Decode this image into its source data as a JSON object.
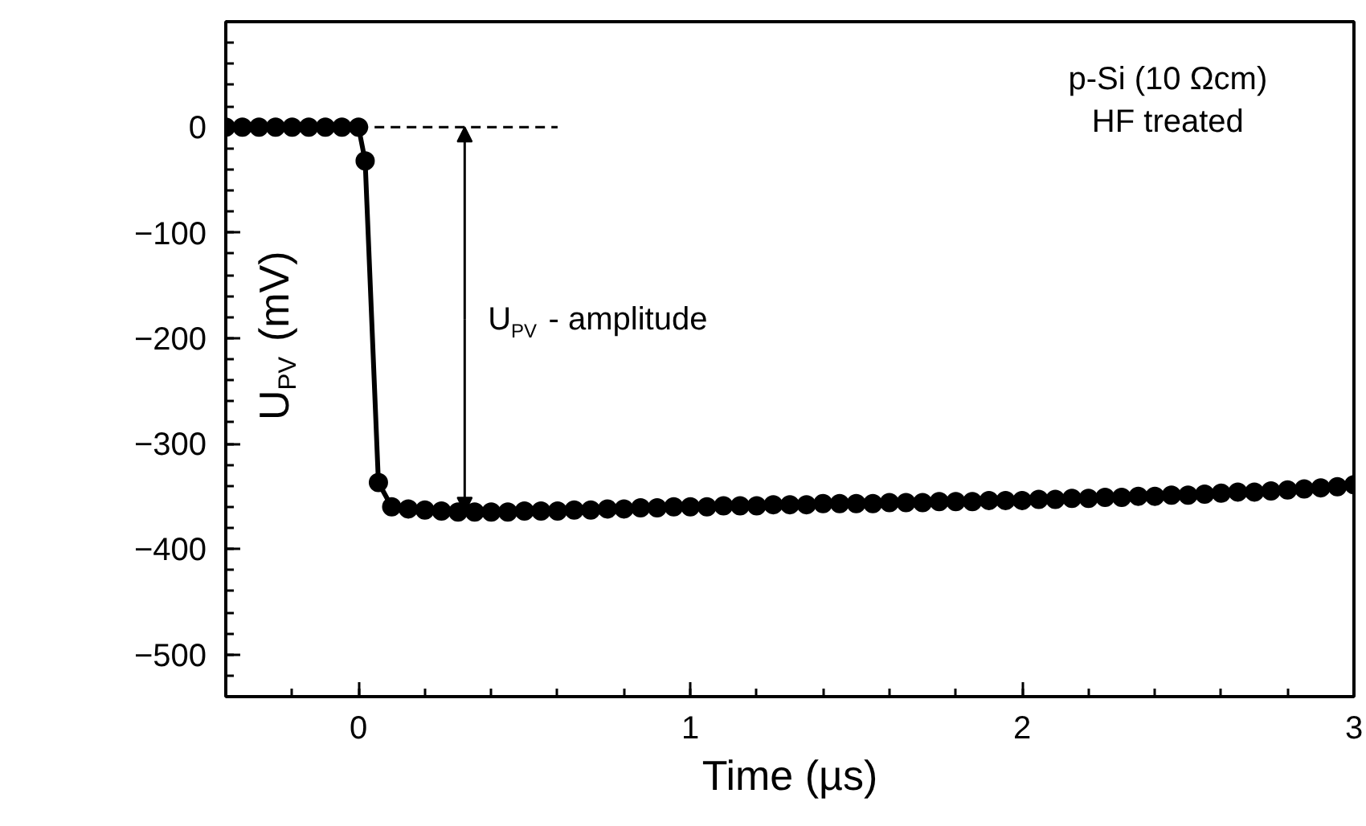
{
  "chart_data": {
    "type": "line",
    "xlabel": "Time (µs)",
    "ylabel": "U$_{PV}$ (mV)",
    "xlim": [
      -0.4,
      3
    ],
    "ylim": [
      -540,
      100
    ],
    "xticks": [
      0,
      1,
      2,
      3
    ],
    "yticks": [
      0,
      -100,
      -200,
      -300,
      -400,
      -500
    ],
    "grid": false,
    "marker": "circle",
    "line_style": "solid",
    "series": [
      {
        "color": "#000000",
        "x": [
          -0.4,
          -0.35,
          -0.3,
          -0.25,
          -0.2,
          -0.15,
          -0.1,
          -0.05,
          0.0,
          0.02,
          0.06,
          0.1,
          0.15,
          0.2,
          0.25,
          0.3,
          0.35,
          0.4,
          0.45,
          0.5,
          0.55,
          0.6,
          0.65,
          0.7,
          0.75,
          0.8,
          0.85,
          0.9,
          0.95,
          1.0,
          1.05,
          1.1,
          1.15,
          1.2,
          1.25,
          1.3,
          1.35,
          1.4,
          1.45,
          1.5,
          1.55,
          1.6,
          1.65,
          1.7,
          1.75,
          1.8,
          1.85,
          1.9,
          1.95,
          2.0,
          2.05,
          2.1,
          2.15,
          2.2,
          2.25,
          2.3,
          2.35,
          2.4,
          2.45,
          2.5,
          2.55,
          2.6,
          2.65,
          2.7,
          2.75,
          2.8,
          2.85,
          2.9,
          2.95,
          3.0
        ],
        "values": [
          0,
          0,
          0,
          0,
          0,
          0,
          0,
          0,
          0,
          -32,
          -337,
          -360,
          -362,
          -363,
          -364,
          -365,
          -365,
          -365,
          -365,
          -364,
          -364,
          -364,
          -363,
          -363,
          -362,
          -362,
          -361,
          -361,
          -360,
          -360,
          -360,
          -359,
          -359,
          -359,
          -358,
          -358,
          -358,
          -357,
          -357,
          -357,
          -357,
          -356,
          -356,
          -356,
          -355,
          -355,
          -355,
          -354,
          -354,
          -354,
          -353,
          -353,
          -352,
          -352,
          -351,
          -351,
          -350,
          -350,
          -349,
          -349,
          -348,
          -347,
          -346,
          -346,
          -345,
          -344,
          -343,
          -342,
          -341,
          -339
        ]
      },
      {
        "color": "#000000",
        "type": "line",
        "marker": "none",
        "line_style": "dashed",
        "x": [
          0,
          0.6
        ],
        "values": [
          0,
          0
        ]
      }
    ],
    "annotations": [
      {
        "text": "U$_{PV}$ -  amplitude",
        "x": 0.32,
        "y": -365
      },
      "p-Si (10 Ωcm)\nHF treated"
    ]
  }
}
